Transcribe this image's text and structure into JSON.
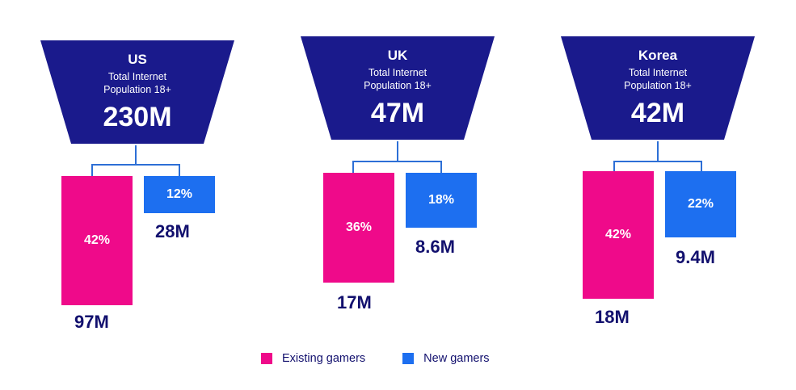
{
  "colors": {
    "funnel": "#1a1a8c",
    "existing": "#ef0a8a",
    "new": "#1d6ff0",
    "text_dark": "#12106e",
    "connector": "#2d6fd6"
  },
  "panels": [
    {
      "country": "US",
      "line1": "Total Internet",
      "line2": "Population 18+",
      "total": "230M",
      "existing_pct": "42%",
      "existing_abs": "97M",
      "new_pct": "12%",
      "new_abs": "28M"
    },
    {
      "country": "UK",
      "line1": "Total Internet",
      "line2": "Population 18+",
      "total": "47M",
      "existing_pct": "36%",
      "existing_abs": "17M",
      "new_pct": "18%",
      "new_abs": "8.6M"
    },
    {
      "country": "Korea",
      "line1": "Total Internet",
      "line2": "Population 18+",
      "total": "42M",
      "existing_pct": "42%",
      "existing_abs": "18M",
      "new_pct": "22%",
      "new_abs": "9.4M"
    }
  ],
  "legend": {
    "existing": "Existing gamers",
    "new": "New gamers"
  }
}
